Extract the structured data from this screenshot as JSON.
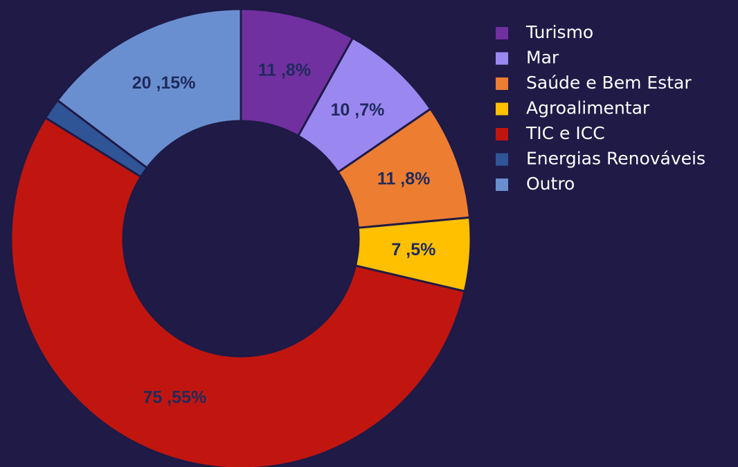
{
  "chart_data": {
    "type": "pie",
    "categories": [
      "Turismo",
      "Mar",
      "Saúde e Bem Estar",
      "Agroalimentar",
      "TIC e ICC",
      "Energias Renováveis",
      "Outro"
    ],
    "values": [
      11,
      10,
      11,
      7,
      75,
      2,
      20
    ],
    "value_labels": [
      "11 ,8%",
      "10 ,7%",
      "11 ,8%",
      "7 ,5%",
      "75 ,55%",
      null,
      "20 ,15%"
    ],
    "colors": [
      "#7030a0",
      "#9a88f0",
      "#ed7d31",
      "#ffc000",
      "#c0160f",
      "#2f5597",
      "#6a8fd0"
    ]
  }
}
